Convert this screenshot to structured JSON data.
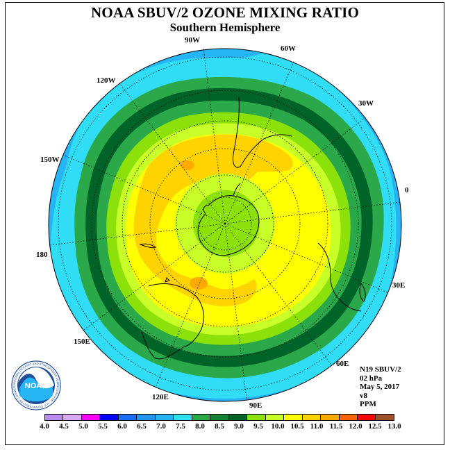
{
  "title": "NOAA SBUV/2 OZONE MIXING RATIO",
  "subtitle": "Southern Hemisphere",
  "longitude_labels": {
    "lon_90w": "90W",
    "lon_60w": "60W",
    "lon_30w": "30W",
    "lon_0": "0",
    "lon_30e": "30E",
    "lon_60e": "60E",
    "lon_90e": "90E",
    "lon_120e": "120E",
    "lon_150e": "150E",
    "lon_180": "180",
    "lon_150w": "150W",
    "lon_120w": "120W"
  },
  "info": {
    "instrument": "N19 SBUV/2",
    "level": "02 hPa",
    "date": "May 5, 2017",
    "version": "v8",
    "units": "PPM"
  },
  "logo": {
    "text": "NOAA",
    "ring_text": "NATIONAL OCEANIC AND ATMOSPHERIC ADMINISTRATION · U.S. DEPARTMENT OF COMMERCE"
  },
  "colorbar": {
    "labels": [
      "4.0",
      "4.5",
      "5.0",
      "5.5",
      "6.0",
      "6.5",
      "7.0",
      "7.5",
      "8.0",
      "8.5",
      "9.0",
      "9.5",
      "10.0",
      "10.5",
      "11.0",
      "11.5",
      "12.0",
      "12.5",
      "13.0"
    ],
    "colors": [
      "#b98cf5",
      "#d9aaf2",
      "#ff00ff",
      "#0000ff",
      "#1c6ef5",
      "#2596f0",
      "#27b4f5",
      "#30ddf5",
      "#2aa84a",
      "#138232",
      "#006428",
      "#8ce10a",
      "#c8ff28",
      "#ffff00",
      "#ffd300",
      "#ffaa00",
      "#ff6400",
      "#ff0000",
      "#a05028"
    ]
  },
  "map_data": {
    "projection": "south-polar-stereographic",
    "field": "ozone mixing ratio",
    "band_colors": {
      "outer_blue": "#27b4f5",
      "cyan": "#30ddf5",
      "green": "#2aa84a",
      "dark_green": "#006428",
      "light_green": "#8ce10a",
      "yellow_green": "#c8ff28",
      "yellow": "#ffff00",
      "gold": "#ffd300",
      "orange": "#ffaa00",
      "pole_green": "#8ce10a"
    }
  }
}
